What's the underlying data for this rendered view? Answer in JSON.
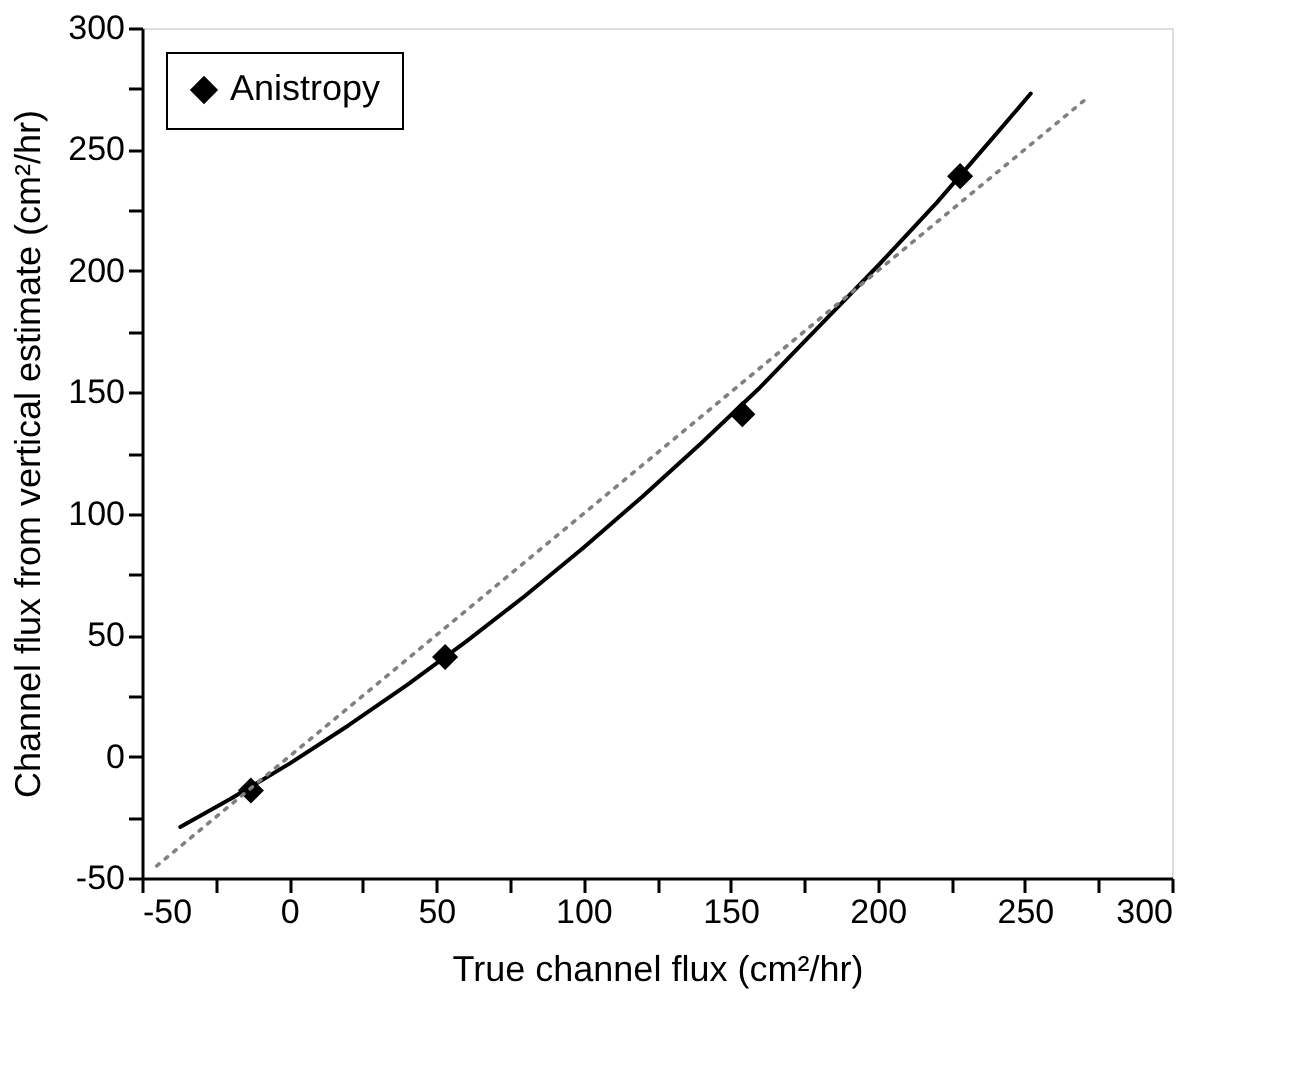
{
  "chart_data": {
    "type": "scatter",
    "xlabel": "True channel flux (cm²/hr)",
    "ylabel": "Channel flux from vertical estimate (cm²/hr)",
    "xlim": [
      -50,
      300
    ],
    "ylim": [
      -50,
      300
    ],
    "xticks": [
      -50,
      {
        "value": -25,
        "label": null
      },
      0,
      {
        "value": 25,
        "label": null
      },
      50,
      {
        "value": 75,
        "label": null
      },
      100,
      {
        "value": 125,
        "label": null
      },
      150,
      {
        "value": 175,
        "label": null
      },
      200,
      {
        "value": 225,
        "label": null
      },
      250,
      {
        "value": 275,
        "label": null
      },
      300
    ],
    "yticks": [
      -50,
      {
        "value": -25,
        "label": null
      },
      0,
      {
        "value": 25,
        "label": null
      },
      50,
      {
        "value": 75,
        "label": null
      },
      100,
      {
        "value": 125,
        "label": null
      },
      150,
      {
        "value": 175,
        "label": null
      },
      200,
      {
        "value": 225,
        "label": null
      },
      250,
      {
        "value": 275,
        "label": null
      },
      300
    ],
    "grid": false,
    "legend": "top left",
    "series": [
      {
        "name": "Anistropy",
        "marker": "diamond",
        "color": "#000000",
        "x": [
          -13,
          53,
          154,
          228
        ],
        "values": [
          -14,
          41,
          141,
          239
        ]
      },
      {
        "type": "line",
        "marker": "none",
        "line_style": "solid",
        "color": "#000000",
        "x": [
          -37,
          -20,
          0,
          20,
          40,
          60,
          80,
          100,
          120,
          140,
          160,
          180,
          200,
          220,
          240,
          252
        ],
        "values": [
          -29,
          -17.5,
          -3,
          12.7,
          29.4,
          47.2,
          66,
          86,
          107,
          129,
          152,
          177,
          202,
          228,
          256,
          273
        ]
      },
      {
        "type": "line",
        "marker": "none",
        "line_style": "dotted",
        "color": "#808080",
        "x": [
          -45,
          272
        ],
        "values": [
          -45,
          272
        ]
      }
    ]
  }
}
